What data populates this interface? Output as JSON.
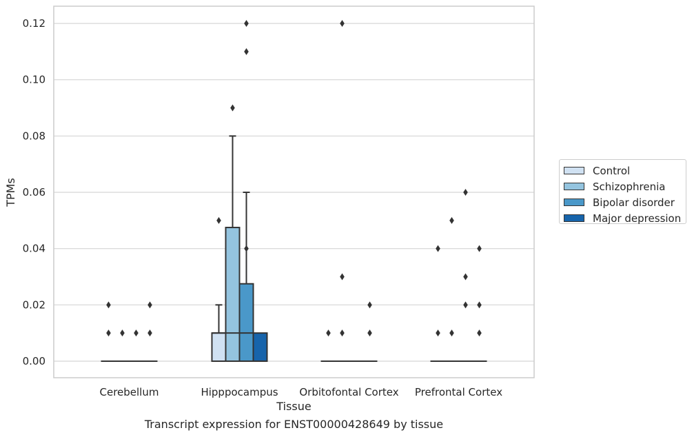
{
  "caption": "Transcript expression for ENST00000428649 by tissue",
  "chart_data": {
    "type": "box",
    "title": "",
    "xlabel": "Tissue",
    "ylabel": "TPMs",
    "ylim": [
      -0.006,
      0.126
    ],
    "yticks": [
      "0.00",
      "0.02",
      "0.04",
      "0.06",
      "0.08",
      "0.10",
      "0.12"
    ],
    "ytick_values": [
      0,
      0.02,
      0.04,
      0.06,
      0.08,
      0.1,
      0.12
    ],
    "grid": true,
    "legend_position": "right",
    "categories": [
      "Cerebellum",
      "Hipppocampus",
      "Orbitofontal Cortex",
      "Prefrontal Cortex"
    ],
    "series": [
      {
        "name": "Control",
        "color": "#d0e1f2",
        "boxes": [
          {
            "q1": 0,
            "median": 0,
            "q3": 0,
            "whisker_low": 0,
            "whisker_high": 0,
            "outliers": [
              0.02,
              0.01
            ]
          },
          {
            "q1": 0,
            "median": 0.01,
            "q3": 0.01,
            "whisker_low": 0,
            "whisker_high": 0.02,
            "outliers": [
              0.05
            ]
          },
          {
            "q1": 0,
            "median": 0,
            "q3": 0,
            "whisker_low": 0,
            "whisker_high": 0,
            "outliers": [
              0.01
            ]
          },
          {
            "q1": 0,
            "median": 0,
            "q3": 0,
            "whisker_low": 0,
            "whisker_high": 0,
            "outliers": [
              0.04,
              0.01
            ]
          }
        ]
      },
      {
        "name": "Schizophrenia",
        "color": "#94c4df",
        "boxes": [
          {
            "q1": 0,
            "median": 0,
            "q3": 0,
            "whisker_low": 0,
            "whisker_high": 0,
            "outliers": [
              0.01
            ]
          },
          {
            "q1": 0,
            "median": 0.01,
            "q3": 0.0475,
            "whisker_low": 0,
            "whisker_high": 0.08,
            "outliers": [
              0.09
            ]
          },
          {
            "q1": 0,
            "median": 0,
            "q3": 0,
            "whisker_low": 0,
            "whisker_high": 0,
            "outliers": [
              0.12,
              0.03,
              0.01
            ]
          },
          {
            "q1": 0,
            "median": 0,
            "q3": 0,
            "whisker_low": 0,
            "whisker_high": 0,
            "outliers": [
              0.05,
              0.01
            ]
          }
        ]
      },
      {
        "name": "Bipolar disorder",
        "color": "#4a98c9",
        "boxes": [
          {
            "q1": 0,
            "median": 0,
            "q3": 0,
            "whisker_low": 0,
            "whisker_high": 0,
            "outliers": [
              0.01
            ]
          },
          {
            "q1": 0,
            "median": 0.01,
            "q3": 0.0275,
            "whisker_low": 0,
            "whisker_high": 0.06,
            "outliers": [
              0.12,
              0.11,
              0.04
            ]
          },
          {
            "q1": 0,
            "median": 0,
            "q3": 0,
            "whisker_low": 0,
            "whisker_high": 0,
            "outliers": []
          },
          {
            "q1": 0,
            "median": 0,
            "q3": 0,
            "whisker_low": 0,
            "whisker_high": 0,
            "outliers": [
              0.06,
              0.03,
              0.02
            ]
          }
        ]
      },
      {
        "name": "Major depression",
        "color": "#1764ab",
        "boxes": [
          {
            "q1": 0,
            "median": 0,
            "q3": 0,
            "whisker_low": 0,
            "whisker_high": 0,
            "outliers": [
              0.02,
              0.01
            ]
          },
          {
            "q1": 0,
            "median": 0,
            "q3": 0.01,
            "whisker_low": 0,
            "whisker_high": 0.01,
            "outliers": []
          },
          {
            "q1": 0,
            "median": 0,
            "q3": 0,
            "whisker_low": 0,
            "whisker_high": 0,
            "outliers": [
              0.02,
              0.01
            ]
          },
          {
            "q1": 0,
            "median": 0,
            "q3": 0,
            "whisker_low": 0,
            "whisker_high": 0,
            "outliers": [
              0.04,
              0.02,
              0.01
            ]
          }
        ]
      }
    ]
  }
}
